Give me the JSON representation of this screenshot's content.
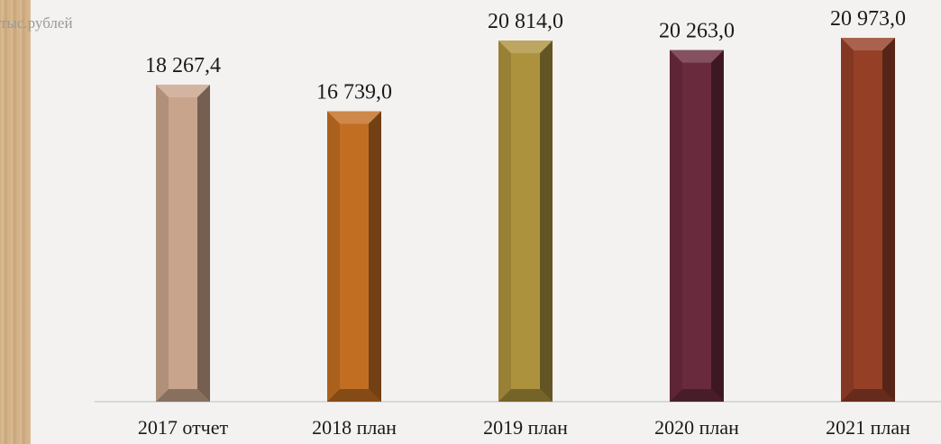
{
  "unit_label": "тыс.рублей",
  "chart_data": {
    "type": "bar",
    "categories": [
      "2017 отчет",
      "2018 план",
      "2019 план",
      "2020 план",
      "2021 план"
    ],
    "values": [
      18267.4,
      16739.0,
      20814.0,
      20263.0,
      20973.0
    ],
    "value_labels": [
      "18 267,4",
      "16 739,0",
      "20 814,0",
      "20 263,0",
      "20 973,0"
    ],
    "ylim": [
      0,
      20973.0
    ],
    "colors": [
      "#c8a48c",
      "#c26e22",
      "#ad923e",
      "#6a2a3d",
      "#963f27"
    ],
    "title": "",
    "xlabel": "",
    "ylabel": ""
  }
}
